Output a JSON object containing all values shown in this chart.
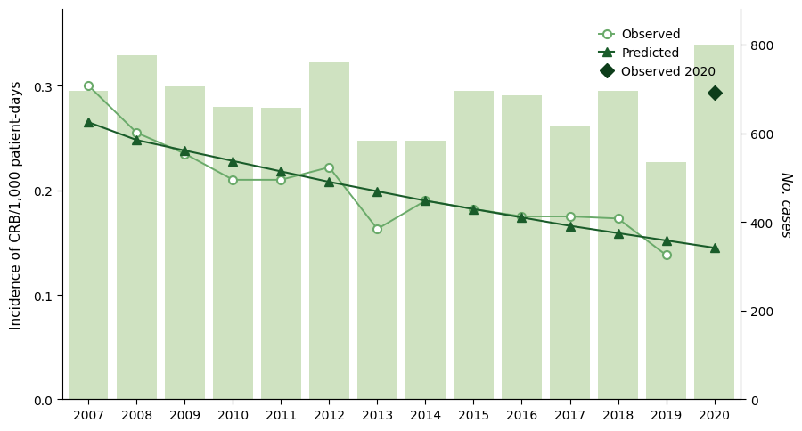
{
  "years": [
    2007,
    2008,
    2009,
    2010,
    2011,
    2012,
    2013,
    2014,
    2015,
    2016,
    2017,
    2018,
    2019,
    2020
  ],
  "observed": [
    0.3,
    0.255,
    0.235,
    0.21,
    0.21,
    0.222,
    0.163,
    0.19,
    0.182,
    0.175,
    0.175,
    0.173,
    0.138,
    null
  ],
  "predicted": [
    0.265,
    0.248,
    0.238,
    0.228,
    0.218,
    0.208,
    0.199,
    0.19,
    0.182,
    0.174,
    0.166,
    0.159,
    0.152,
    0.145
  ],
  "observed_2020": 0.293,
  "bar_cases": [
    695,
    775,
    705,
    660,
    657,
    760,
    583,
    583,
    695,
    685,
    615,
    695,
    535,
    800
  ],
  "bar_color": "#cfe2c1",
  "bar_edgecolor": "#cfe2c1",
  "line_color_dark": "#1a5c2a",
  "line_color_obs": "#6aaa6a",
  "obs_marker_face": "#ffffff",
  "obs_marker_edge": "#6aaa6a",
  "obs2020_color": "#0d3d1a",
  "ylim_left": [
    0,
    0.3733
  ],
  "ylim_right": [
    0,
    880
  ],
  "yticks_left": [
    0,
    0.1,
    0.2,
    0.3
  ],
  "yticks_right": [
    0,
    200,
    400,
    600,
    800
  ],
  "ylabel_left": "Incidence of CRB/1,000 patient-days",
  "ylabel_right": "No. cases",
  "legend_labels": [
    "Observed",
    "Predicted",
    "Observed 2020"
  ],
  "background_color": "#ffffff",
  "spine_color": "#000000"
}
